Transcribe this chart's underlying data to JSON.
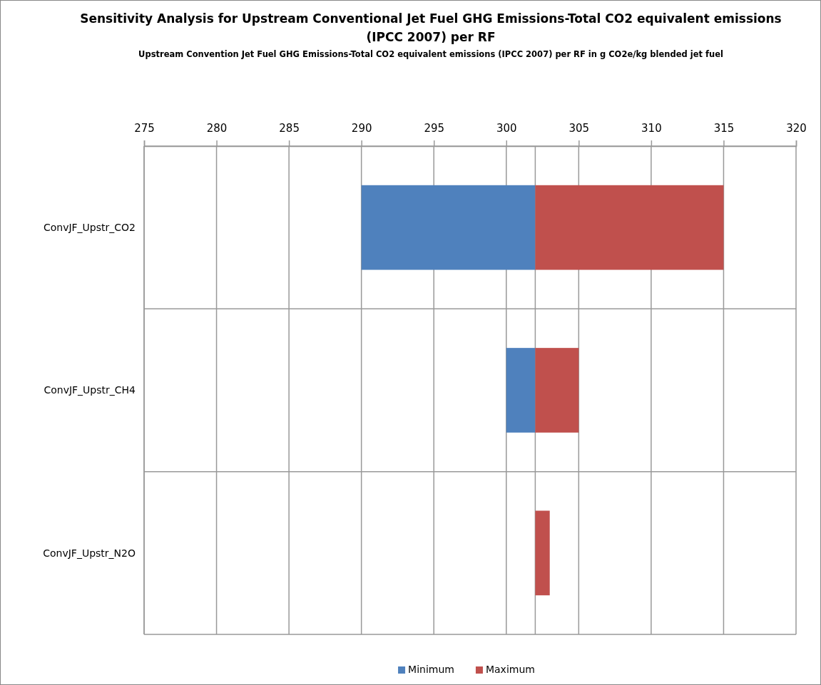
{
  "chart_data": {
    "type": "bar",
    "orientation": "horizontal",
    "title": "Sensitivity Analysis for Upstream Conventional Jet Fuel GHG Emissions-Total CO2 equivalent emissions (IPCC 2007) per RF",
    "subtitle": "Upstream Convention Jet Fuel GHG Emissions-Total  CO2 equivalent emissions  (IPCC 2007) per RF in g CO2e/kg blended jet fuel",
    "categories": [
      "ConvJF_Upstr_CO2",
      "ConvJF_Upstr_CH4",
      "ConvJF_Upstr_N2O"
    ],
    "series": [
      {
        "name": "Minimum",
        "color": "#4f81bd",
        "base": [
          290,
          300,
          null
        ],
        "values": [
          12,
          2,
          null
        ]
      },
      {
        "name": "Maximum",
        "color": "#c0504d",
        "base": [
          302,
          302,
          302
        ],
        "values": [
          13,
          3,
          1
        ]
      }
    ],
    "xlim": [
      275,
      320
    ],
    "xticks": [
      275,
      280,
      285,
      290,
      295,
      300,
      305,
      310,
      315,
      320
    ],
    "ref_lines": [
      {
        "axis": "x",
        "value": 302
      }
    ],
    "grid": true,
    "legend": "bottom"
  }
}
